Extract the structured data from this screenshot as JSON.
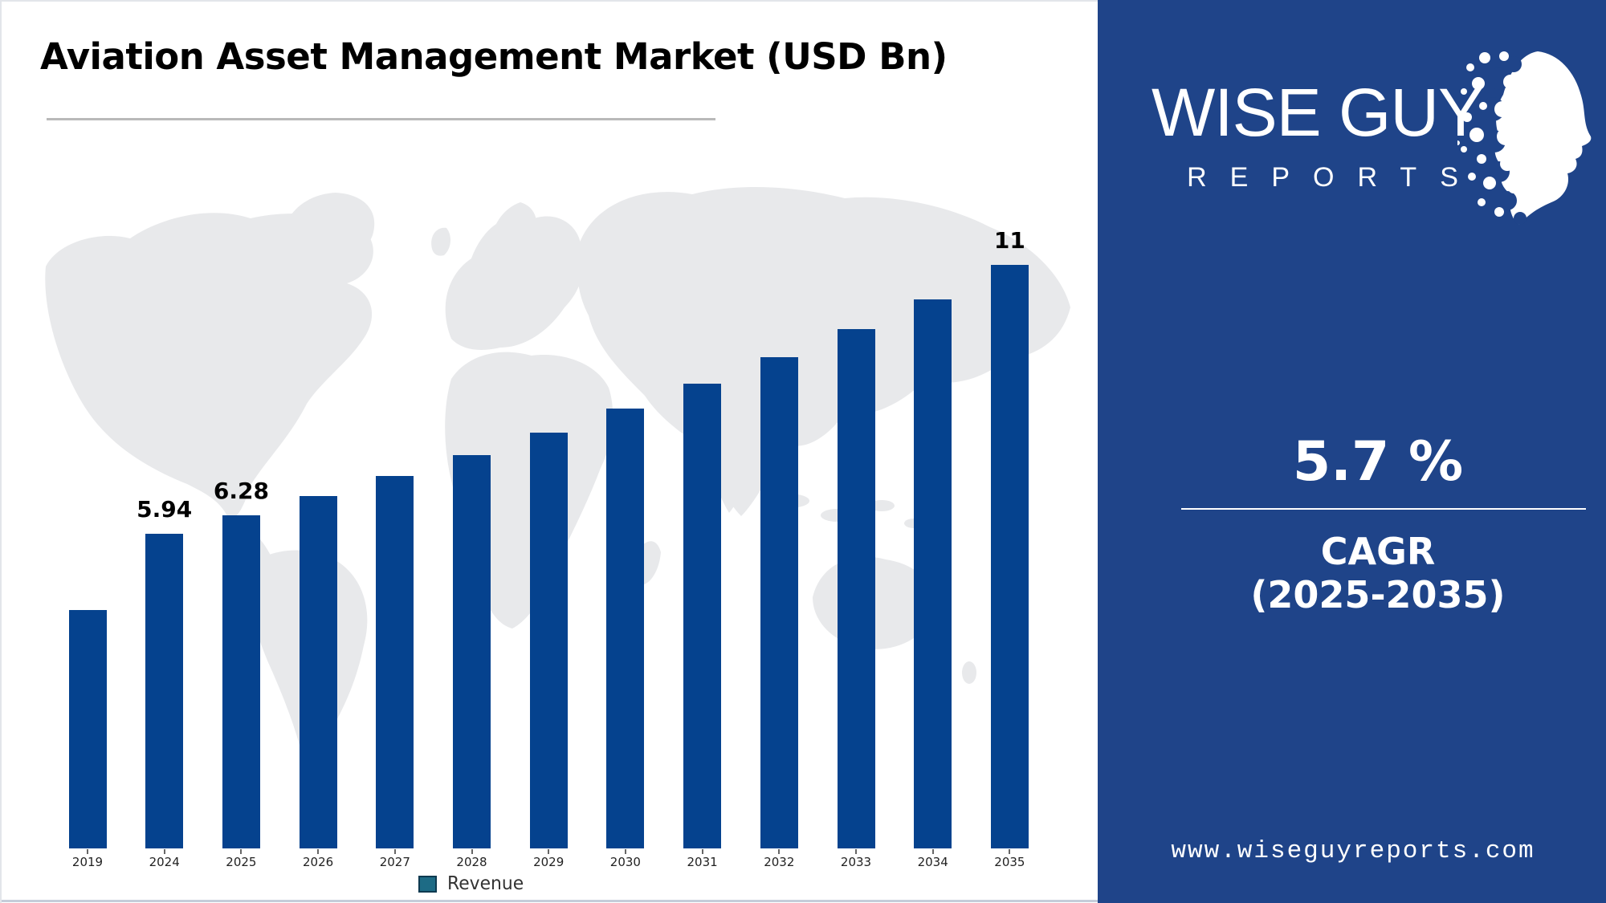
{
  "title": "Aviation Asset Management Market (USD Bn)",
  "chart_data": {
    "type": "bar",
    "title": "Aviation Asset Management Market (USD Bn)",
    "categories": [
      "2019",
      "2024",
      "2025",
      "2026",
      "2027",
      "2028",
      "2029",
      "2030",
      "2031",
      "2032",
      "2033",
      "2034",
      "2035"
    ],
    "values": [
      4.5,
      5.94,
      6.28,
      6.64,
      7.02,
      7.42,
      7.84,
      8.29,
      8.76,
      9.26,
      9.79,
      10.35,
      11
    ],
    "bar_labels": [
      "",
      "5.94",
      "6.28",
      "",
      "",
      "",
      "",
      "",
      "",
      "",
      "",
      "",
      "11"
    ],
    "series_name": "Revenue",
    "bar_color": "#05428e",
    "legend": {
      "label": "Revenue",
      "swatch_color": "#1d6b85",
      "position": "bottom-center"
    },
    "ylim": [
      0,
      11.5
    ],
    "grid": false,
    "xlabel": "",
    "ylabel": ""
  },
  "panel": {
    "bg_color": "#1f4489",
    "logo": {
      "wordmark": "WISE GUY",
      "subtext": "REPORTS"
    },
    "cagr_value": "5.7 %",
    "cagr_title": "CAGR",
    "cagr_range": "(2025-2035)",
    "website": "www.wiseguyreports.com"
  }
}
